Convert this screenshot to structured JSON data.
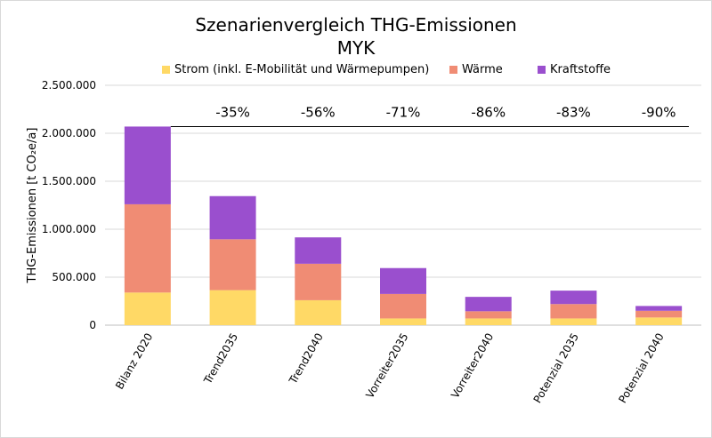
{
  "chart_data": {
    "type": "bar",
    "stacked": true,
    "title": "Szenarienvergleich THG-Emissionen",
    "subtitle": "MYK",
    "ylabel": "THG-Emissionen [t CO₂e/a]",
    "ylim": [
      0,
      2500000
    ],
    "yticks": [
      "0",
      "500.000",
      "1.000.000",
      "1.500.000",
      "2.000.000",
      "2.500.000"
    ],
    "categories": [
      "Bilanz 2020",
      "Trend2035",
      "Trend2040",
      "Vorreiter2035",
      "Vorreiter2040",
      "Potenzial 2035",
      "Potenzial 2040"
    ],
    "series": [
      {
        "name": "Strom (inkl. E-Mobilität und Wärmepumpen)",
        "color": "#FFD966",
        "values": [
          340000,
          365000,
          260000,
          70000,
          70000,
          70000,
          80000
        ]
      },
      {
        "name": "Wärme",
        "color": "#F08C74",
        "values": [
          920000,
          530000,
          380000,
          255000,
          75000,
          150000,
          70000
        ]
      },
      {
        "name": "Kraftstoffe",
        "color": "#9A4FCE",
        "values": [
          810000,
          450000,
          275000,
          270000,
          150000,
          140000,
          50000
        ]
      }
    ],
    "reductions": [
      "-35%",
      "-56%",
      "-71%",
      "-86%",
      "-83%",
      "-90%"
    ],
    "reference_line_value": 2070000,
    "legend_position": "top",
    "grid": "horizontal"
  }
}
